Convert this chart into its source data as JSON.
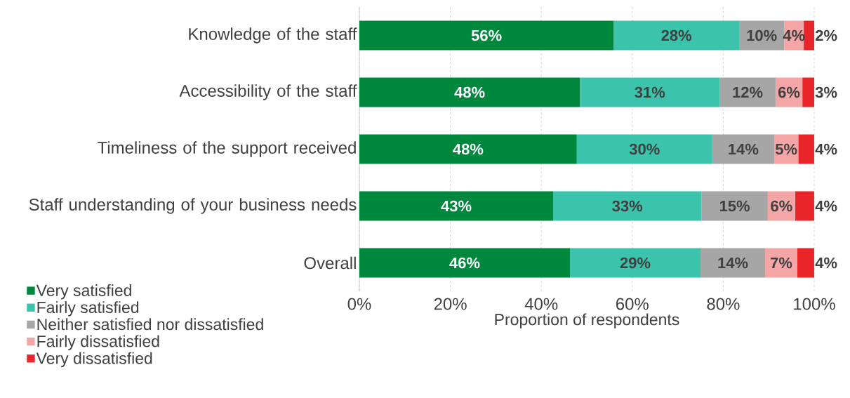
{
  "chart_data": {
    "type": "bar",
    "orientation": "horizontal",
    "stacked": true,
    "categories": [
      "Knowledge of the staff",
      "Accessibility of the staff",
      "Timeliness of the support received",
      "Staff understanding of your business needs",
      "Overall"
    ],
    "series": [
      {
        "name": "Very satisfied",
        "color": "#00873e",
        "values": [
          55.9,
          48.5,
          47.8,
          42.6,
          46.3
        ],
        "value_labels": [
          "56%",
          "48%",
          "48%",
          "43%",
          "46%"
        ]
      },
      {
        "name": "Fairly satisfied",
        "color": "#3cc3ab",
        "values": [
          27.6,
          30.7,
          29.8,
          32.6,
          28.7
        ],
        "value_labels": [
          "28%",
          "31%",
          "30%",
          "33%",
          "29%"
        ]
      },
      {
        "name": "Neither satisfied nor dissatisfied",
        "color": "#a6a6a6",
        "values": [
          9.9,
          12.3,
          13.6,
          14.6,
          14.2
        ],
        "value_labels": [
          "10%",
          "12%",
          "14%",
          "15%",
          "14%"
        ]
      },
      {
        "name": "Fairly dissatisfied",
        "color": "#f4a6a6",
        "values": [
          4.3,
          5.9,
          5.3,
          6.0,
          7.1
        ],
        "value_labels": [
          "4%",
          "6%",
          "5%",
          "6%",
          "7%"
        ]
      },
      {
        "name": "Very dissatisfied",
        "color": "#e8262a",
        "values": [
          2.3,
          2.6,
          3.5,
          4.2,
          3.7
        ],
        "value_labels": [
          "2%",
          "3%",
          "4%",
          "4%",
          "4%"
        ]
      }
    ],
    "xlabel": "Proportion of respondents",
    "xlim": [
      0,
      100
    ],
    "xticks": [
      {
        "value": 0,
        "label": "0%"
      },
      {
        "value": 20,
        "label": "20%"
      },
      {
        "value": 40,
        "label": "40%"
      },
      {
        "value": 60,
        "label": "60%"
      },
      {
        "value": 80,
        "label": "80%"
      },
      {
        "value": 100,
        "label": "100%"
      }
    ],
    "grid": "x",
    "legend": "bottom left"
  }
}
